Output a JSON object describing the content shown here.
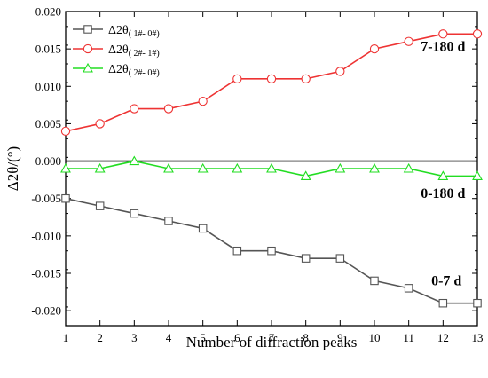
{
  "chart_data": {
    "type": "line",
    "x": [
      1,
      2,
      3,
      4,
      5,
      6,
      7,
      8,
      9,
      10,
      11,
      12,
      13
    ],
    "xlabel": "Number of diffraction peaks",
    "ylabel": "Δ2θ/(°)",
    "xlim": [
      1,
      13
    ],
    "ylim": [
      -0.022,
      0.02
    ],
    "x_ticks": [
      "1",
      "2",
      "3",
      "4",
      "5",
      "6",
      "7",
      "8",
      "9",
      "10",
      "11",
      "12",
      "13"
    ],
    "y_ticks": [
      {
        "value": 0.02,
        "label": "0.020"
      },
      {
        "value": 0.015,
        "label": "0.015"
      },
      {
        "value": 0.01,
        "label": "0.010"
      },
      {
        "value": 0.005,
        "label": "0.005"
      },
      {
        "value": 0.0,
        "label": "0.000"
      },
      {
        "value": -0.005,
        "label": "-0.005"
      },
      {
        "value": -0.01,
        "label": "-0.010"
      },
      {
        "value": -0.015,
        "label": "-0.015"
      },
      {
        "value": -0.02,
        "label": "-0.020"
      }
    ],
    "grid": false,
    "legend_position": "top-left",
    "zero_line": true,
    "series": [
      {
        "name": "Δ2θ(1#-0#)",
        "legend_main": "Δ2θ",
        "legend_sub": "( 1#- 0#)",
        "color": "#555555",
        "marker": "square",
        "values": [
          -0.005,
          -0.006,
          -0.007,
          -0.008,
          -0.009,
          -0.012,
          -0.012,
          -0.013,
          -0.013,
          -0.016,
          -0.017,
          -0.019,
          -0.019
        ]
      },
      {
        "name": "Δ2θ(2#-1#)",
        "legend_main": "Δ2θ",
        "legend_sub": "( 2#- 1#)",
        "color": "#ee3333",
        "marker": "circle",
        "values": [
          0.004,
          0.005,
          0.007,
          0.007,
          0.008,
          0.011,
          0.011,
          0.011,
          0.012,
          0.015,
          0.016,
          0.017,
          0.017
        ]
      },
      {
        "name": "Δ2θ(2#-0#)",
        "legend_main": "Δ2θ",
        "legend_sub": "( 2#- 0#)",
        "color": "#22dd22",
        "marker": "triangle",
        "values": [
          -0.001,
          -0.001,
          0.0,
          -0.001,
          -0.001,
          -0.001,
          -0.001,
          -0.002,
          -0.001,
          -0.001,
          -0.001,
          -0.002,
          -0.002
        ]
      }
    ],
    "annotations": [
      {
        "text": "7-180 d",
        "x": 12.0,
        "y": 0.0147
      },
      {
        "text": "0-180 d",
        "x": 12.0,
        "y": -0.0049
      },
      {
        "text": "0-7 d",
        "x": 12.1,
        "y": -0.0166
      }
    ]
  }
}
